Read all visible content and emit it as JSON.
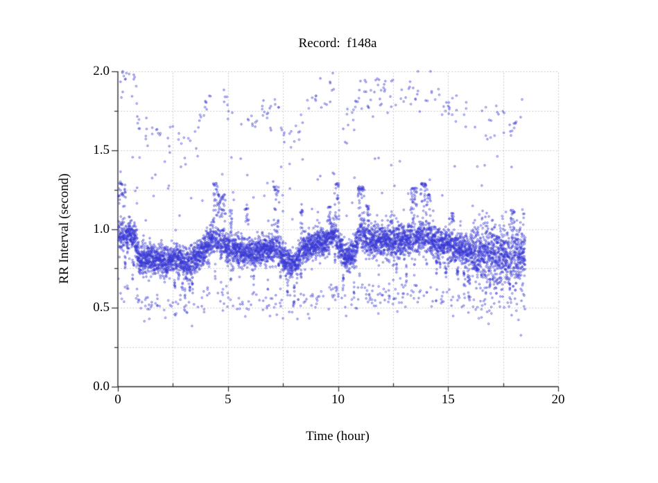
{
  "page": {
    "background": "#ffffff",
    "text_color": "#000000"
  },
  "chart_data": {
    "type": "scatter",
    "title": "Record:  f148a",
    "xlabel": "Time (hour)",
    "ylabel": "RR Interval (second)",
    "xlim": [
      0,
      20
    ],
    "ylim": [
      0.0,
      2.0
    ],
    "legend": "none",
    "grid": {
      "show": true,
      "style": "dotted",
      "color": "#bdbdbd",
      "x_step": 2.5,
      "y_step": 0.25
    },
    "axis_color": "#2b2b2b",
    "x_axis": {
      "label": "Time (hour)",
      "range": [
        0,
        20
      ],
      "minor_step": 2.5,
      "major_ticks": [
        {
          "label": "0",
          "value": 0
        },
        {
          "label": "5",
          "value": 5
        },
        {
          "label": "10",
          "value": 10
        },
        {
          "label": "15",
          "value": 15
        },
        {
          "label": "20",
          "value": 20
        }
      ]
    },
    "y_axis": {
      "label": "RR Interval (second)",
      "range": [
        0.0,
        2.0
      ],
      "minor_step": 0.25,
      "major_ticks": [
        {
          "label": "0.0",
          "value": 0.0
        },
        {
          "label": "0.5",
          "value": 0.5
        },
        {
          "label": "1.0",
          "value": 1.0
        },
        {
          "label": "1.5",
          "value": 1.5
        },
        {
          "label": "2.0",
          "value": 2.0
        }
      ]
    },
    "marker": {
      "shape": "open-circle",
      "color": "#3a3ad4",
      "radius": 1.25
    },
    "series": {
      "name": "RR intervals",
      "seed": 7,
      "time_range_hours": [
        0.02,
        18.5
      ],
      "main_band": {
        "points": 6500,
        "envelope": [
          [
            0.0,
            0.95
          ],
          [
            0.75,
            0.96
          ],
          [
            0.85,
            0.88
          ],
          [
            1.0,
            0.8
          ],
          [
            1.6,
            0.81
          ],
          [
            2.1,
            0.79
          ],
          [
            2.6,
            0.82
          ],
          [
            3.0,
            0.78
          ],
          [
            3.4,
            0.8
          ],
          [
            3.9,
            0.86
          ],
          [
            4.3,
            0.95
          ],
          [
            4.5,
            0.92
          ],
          [
            4.9,
            0.89
          ],
          [
            5.3,
            0.86
          ],
          [
            5.9,
            0.84
          ],
          [
            6.4,
            0.86
          ],
          [
            6.9,
            0.87
          ],
          [
            7.3,
            0.89
          ],
          [
            7.6,
            0.79
          ],
          [
            8.1,
            0.78
          ],
          [
            8.4,
            0.87
          ],
          [
            8.9,
            0.91
          ],
          [
            9.4,
            0.92
          ],
          [
            9.8,
            0.97
          ],
          [
            10.0,
            0.92
          ],
          [
            10.3,
            0.82
          ],
          [
            10.7,
            0.84
          ],
          [
            11.0,
            0.97
          ],
          [
            11.2,
            0.95
          ],
          [
            11.5,
            0.92
          ],
          [
            12.0,
            0.93
          ],
          [
            12.6,
            0.92
          ],
          [
            13.2,
            0.94
          ],
          [
            13.8,
            0.95
          ],
          [
            14.2,
            0.93
          ],
          [
            14.8,
            0.9
          ],
          [
            15.4,
            0.88
          ],
          [
            16.0,
            0.86
          ],
          [
            16.4,
            0.83
          ],
          [
            17.0,
            0.84
          ],
          [
            17.6,
            0.82
          ],
          [
            18.1,
            0.83
          ],
          [
            18.5,
            0.84
          ]
        ],
        "halfwidth": [
          [
            0.0,
            0.04
          ],
          [
            0.8,
            0.05
          ],
          [
            3.0,
            0.05
          ],
          [
            4.0,
            0.045
          ],
          [
            8.0,
            0.05
          ],
          [
            10.0,
            0.05
          ],
          [
            16.0,
            0.055
          ],
          [
            16.3,
            0.1
          ],
          [
            18.5,
            0.105
          ]
        ],
        "down_streak_start_prob": 0.008,
        "down_streak_depth": 0.16,
        "up_spike_prob": 0.3,
        "up_spikes": [
          [
            0.18,
            0.35,
            1.29
          ],
          [
            4.42,
            0.22,
            1.29
          ],
          [
            4.72,
            0.35,
            1.22
          ],
          [
            5.15,
            0.15,
            1.12
          ],
          [
            5.85,
            0.18,
            1.13
          ],
          [
            7.2,
            0.25,
            1.27
          ],
          [
            8.35,
            0.12,
            1.12
          ],
          [
            9.6,
            0.12,
            1.14
          ],
          [
            9.95,
            0.22,
            1.29
          ],
          [
            11.05,
            0.3,
            1.27
          ],
          [
            11.35,
            0.15,
            1.15
          ],
          [
            12.4,
            0.1,
            1.1
          ],
          [
            13.45,
            0.28,
            1.26
          ],
          [
            13.9,
            0.3,
            1.29
          ],
          [
            14.15,
            0.18,
            1.22
          ],
          [
            15.2,
            0.1,
            1.1
          ],
          [
            17.95,
            0.2,
            1.12
          ]
        ]
      },
      "upper_outliers": {
        "count": 240,
        "factor": 2.0,
        "noise": 0.06,
        "clip_max": 2.0
      },
      "lower_outliers": {
        "count": 300,
        "factor": 0.63,
        "noise": 0.045,
        "extra_drop_prob": 0.01,
        "extra_drop": 0.13
      },
      "mid_outliers": {
        "count": 90,
        "range": [
          1.05,
          1.47
        ]
      }
    }
  }
}
